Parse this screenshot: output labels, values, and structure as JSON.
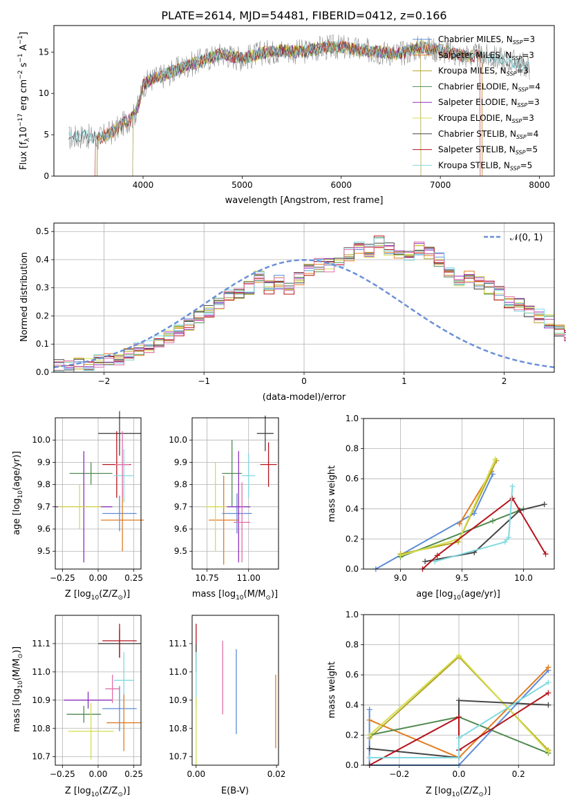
{
  "colors": {
    "chabrier_miles": "#5b8bd6",
    "salpeter_miles": "#e07b1f",
    "kroupa_miles": "#b5a323",
    "chabrier_elodie": "#4f8a4f",
    "salpeter_elodie": "#8a2fbd",
    "kroupa_elodie": "#d4de4c",
    "chabrier_stelib": "#444444",
    "salpeter_stelib": "#b5121b",
    "kroupa_stelib": "#7fd9e0",
    "extra_pink": "#e06fa9",
    "normal_curve": "#6a8fd8",
    "grid": "#b0b0b0"
  },
  "spectrum": {
    "title": "PLATE=2614, MJD=54481, FIBERID=0412, z=0.166",
    "xlabel": "wavelength [Angstrom, rest frame]",
    "ylabel_pre": "Flux [f",
    "ylabel_sub": "λ",
    "ylabel_mid": "10",
    "ylabel_sup1": "−17",
    "ylabel_post": " erg cm",
    "ylabel_sup2": "−2",
    "ylabel_s": " s",
    "ylabel_sup3": "−1",
    "ylabel_end": " A",
    "ylabel_sup4": "−1",
    "ylabel_close": "]",
    "legend": [
      {
        "label": "Chabrier MILES, N",
        "sub": "SSP",
        "tail": "=3",
        "color_key": "chabrier_miles"
      },
      {
        "label": "Salpeter MILES, N",
        "sub": "SSP",
        "tail": "=3",
        "color_key": "salpeter_miles"
      },
      {
        "label": "Kroupa MILES, N",
        "sub": "SSP",
        "tail": "=3",
        "color_key": "kroupa_miles"
      },
      {
        "label": "Chabrier ELODIE, N",
        "sub": "SSP",
        "tail": "=4",
        "color_key": "chabrier_elodie"
      },
      {
        "label": "Salpeter ELODIE, N",
        "sub": "SSP",
        "tail": "=3",
        "color_key": "salpeter_elodie"
      },
      {
        "label": "Kroupa ELODIE, N",
        "sub": "SSP",
        "tail": "=3",
        "color_key": "kroupa_elodie"
      },
      {
        "label": "Chabrier STELIB, N",
        "sub": "SSP",
        "tail": "=4",
        "color_key": "chabrier_stelib"
      },
      {
        "label": "Salpeter STELIB, N",
        "sub": "SSP",
        "tail": "=5",
        "color_key": "salpeter_stelib"
      },
      {
        "label": "Kroupa STELIB, N",
        "sub": "SSP",
        "tail": "=5",
        "color_key": "kroupa_stelib"
      }
    ]
  },
  "residuals": {
    "xlabel": "(data-model)/error",
    "ylabel": "Normed distribution",
    "legend_label": "𝒩(0, 1)"
  },
  "age_z": {
    "ylabel_pre": "age  [log",
    "ylabel_sub": "10",
    "ylabel_post": "(age/yr)]",
    "xlabel_pre": "Z [log",
    "xlabel_sub": "10",
    "xlabel_post": "(Z/Z",
    "xlabel_sub2": "⊙",
    "xlabel_close": ")]"
  },
  "age_mass": {
    "xlabel_pre": "mass [log",
    "xlabel_sub": "10",
    "xlabel_post": "(M/M",
    "xlabel_sub2": "⊙",
    "xlabel_close": ")]"
  },
  "mw_age": {
    "ylabel": "mass weight",
    "xlabel_pre": "age  [log",
    "xlabel_sub": "10",
    "xlabel_post": "(age/yr)]"
  },
  "mass_z": {
    "ylabel_pre": "mass [log",
    "ylabel_sub": "10",
    "ylabel_post": "(M/M",
    "ylabel_sub2": "⊙",
    "ylabel_close": ")]",
    "xlabel_pre": "Z [log",
    "xlabel_sub": "10",
    "xlabel_post": "(Z/Z",
    "xlabel_sub2": "⊙",
    "xlabel_close": ")]"
  },
  "mass_ebv": {
    "xlabel": "E(B-V)"
  },
  "mw_z": {
    "ylabel": "mass weight",
    "xlabel_pre": "Z [log",
    "xlabel_sub": "10",
    "xlabel_post": "(Z/Z",
    "xlabel_sub2": "⊙",
    "xlabel_close": ")]"
  },
  "chart_data": [
    {
      "type": "line",
      "title": "PLATE=2614, MJD=54481, FIBERID=0412, z=0.166",
      "xlabel": "wavelength [Angstrom, rest frame]",
      "xlim": [
        3100,
        8150
      ],
      "ylim": [
        0,
        18.2
      ],
      "xticks": [
        4000,
        5000,
        6000,
        7000,
        8000
      ],
      "yticks": [
        0,
        5,
        10,
        15
      ],
      "grid": false,
      "legend_position": "right",
      "continuum": [
        [
          3250,
          4.6
        ],
        [
          3400,
          4.9
        ],
        [
          3550,
          4.5
        ],
        [
          3700,
          5.4
        ],
        [
          3800,
          6.3
        ],
        [
          3900,
          7.2
        ],
        [
          3950,
          8.4
        ],
        [
          4000,
          11.0
        ],
        [
          4100,
          11.8
        ],
        [
          4200,
          12.1
        ],
        [
          4400,
          13.2
        ],
        [
          4600,
          14.0
        ],
        [
          4800,
          14.8
        ],
        [
          5000,
          14.2
        ],
        [
          5200,
          14.9
        ],
        [
          5400,
          15.2
        ],
        [
          5600,
          15.0
        ],
        [
          5800,
          15.5
        ],
        [
          6000,
          15.6
        ],
        [
          6200,
          15.2
        ],
        [
          6400,
          15.0
        ],
        [
          6600,
          14.8
        ],
        [
          6800,
          15.6
        ],
        [
          7000,
          15.2
        ],
        [
          7200,
          14.6
        ],
        [
          7400,
          14.5
        ],
        [
          7600,
          14.2
        ],
        [
          7800,
          13.6
        ],
        [
          7900,
          13.2
        ]
      ],
      "series": [
        {
          "color_key": "chabrier_miles",
          "xmin": 3540,
          "xmax": 7420
        },
        {
          "color_key": "salpeter_miles",
          "xmin": 3540,
          "xmax": 7420
        },
        {
          "color_key": "kroupa_miles",
          "xmin": 3540,
          "xmax": 7420
        },
        {
          "color_key": "chabrier_elodie",
          "xmin": 3900,
          "xmax": 6800
        },
        {
          "color_key": "salpeter_elodie",
          "xmin": 3900,
          "xmax": 6800
        },
        {
          "color_key": "kroupa_elodie",
          "xmin": 3900,
          "xmax": 6800
        },
        {
          "color_key": "chabrier_stelib",
          "xmin": 3250,
          "xmax": 7900
        },
        {
          "color_key": "salpeter_stelib",
          "xmin": 3520,
          "xmax": 7400
        },
        {
          "color_key": "kroupa_stelib",
          "xmin": 3250,
          "xmax": 7900
        }
      ]
    },
    {
      "type": "histogram",
      "xlabel": "(data-model)/error",
      "ylabel": "Normed distribution",
      "xlim": [
        -2.5,
        2.5
      ],
      "ylim": [
        0,
        0.53
      ],
      "xticks": [
        -2,
        -1,
        0,
        1,
        2
      ],
      "yticks": [
        0.0,
        0.1,
        0.2,
        0.3,
        0.4,
        0.5
      ],
      "grid": true,
      "legend_position": "top-right",
      "bin_width": 0.1,
      "bins_start": -2.5,
      "base_values": [
        0.02,
        0.02,
        0.03,
        0.03,
        0.04,
        0.05,
        0.05,
        0.06,
        0.08,
        0.09,
        0.11,
        0.13,
        0.15,
        0.17,
        0.2,
        0.22,
        0.24,
        0.27,
        0.28,
        0.3,
        0.34,
        0.3,
        0.32,
        0.3,
        0.33,
        0.36,
        0.38,
        0.38,
        0.4,
        0.42,
        0.44,
        0.43,
        0.46,
        0.44,
        0.42,
        0.42,
        0.44,
        0.42,
        0.4,
        0.36,
        0.33,
        0.34,
        0.32,
        0.3,
        0.28,
        0.25,
        0.24,
        0.22,
        0.2,
        0.18,
        0.15,
        0.13,
        0.12,
        0.1,
        0.08,
        0.07,
        0.06,
        0.05,
        0.04,
        0.04,
        0.03,
        0.03,
        0.03,
        0.02,
        0.02
      ],
      "series": [
        {
          "color_key": "chabrier_miles"
        },
        {
          "color_key": "salpeter_miles"
        },
        {
          "color_key": "kroupa_miles"
        },
        {
          "color_key": "chabrier_elodie"
        },
        {
          "color_key": "salpeter_elodie"
        },
        {
          "color_key": "kroupa_elodie"
        },
        {
          "color_key": "chabrier_stelib"
        },
        {
          "color_key": "salpeter_stelib"
        },
        {
          "color_key": "kroupa_stelib"
        },
        {
          "color_key": "extra_pink"
        }
      ],
      "normal": {
        "mean": 0,
        "sigma": 1,
        "style": "dashed",
        "color_key": "normal_curve"
      }
    },
    {
      "type": "errorbar",
      "ylabel": "age [log10(age/yr)]",
      "xlabel": "Z [log10(Z/Z⊙)]",
      "xlim": [
        -0.3,
        0.3
      ],
      "ylim": [
        9.42,
        10.1
      ],
      "xticks": [
        -0.25,
        0.0,
        0.25
      ],
      "yticks": [
        9.5,
        9.6,
        9.7,
        9.8,
        9.9,
        10.0
      ],
      "grid": true,
      "points": [
        {
          "color_key": "chabrier_stelib",
          "x": 0.15,
          "y": 10.03,
          "xerr": 0.15,
          "yerr": 0.1
        },
        {
          "color_key": "salpeter_stelib",
          "x": 0.13,
          "y": 9.89,
          "xerr": 0.1,
          "yerr": 0.15
        },
        {
          "color_key": "kroupa_stelib",
          "x": 0.18,
          "y": 9.84,
          "xerr": 0.07,
          "yerr": 0.12
        },
        {
          "color_key": "chabrier_elodie",
          "x": -0.05,
          "y": 9.85,
          "xerr": 0.15,
          "yerr": 0.05
        },
        {
          "color_key": "chabrier_miles",
          "x": 0.15,
          "y": 9.67,
          "xerr": 0.12,
          "yerr": 0.08
        },
        {
          "color_key": "salpeter_miles",
          "x": 0.17,
          "y": 9.64,
          "xerr": 0.15,
          "yerr": 0.14
        },
        {
          "color_key": "salpeter_elodie",
          "x": -0.1,
          "y": 9.7,
          "xerr": 0.2,
          "yerr": 0.25
        },
        {
          "color_key": "kroupa_elodie",
          "x": -0.13,
          "y": 9.7,
          "xerr": 0.15,
          "yerr": 0.1
        },
        {
          "color_key": "extra_pink",
          "x": 0.17,
          "y": 9.89,
          "xerr": 0.05,
          "yerr": 0.15
        }
      ]
    },
    {
      "type": "errorbar",
      "ylabel": "age [log10(age/yr)]",
      "xlabel": "mass [log10(M/M⊙)]",
      "xlim": [
        10.66,
        11.18
      ],
      "ylim": [
        9.42,
        10.1
      ],
      "xticks": [
        10.75,
        11.0
      ],
      "yticks": [
        9.5,
        9.6,
        9.7,
        9.8,
        9.9,
        10.0
      ],
      "grid": true,
      "points": [
        {
          "color_key": "chabrier_stelib",
          "x": 11.1,
          "y": 10.03,
          "xerr": 0.05,
          "yerr": 0.08
        },
        {
          "color_key": "salpeter_stelib",
          "x": 11.12,
          "y": 9.89,
          "xerr": 0.05,
          "yerr": 0.1
        },
        {
          "color_key": "kroupa_stelib",
          "x": 11.0,
          "y": 9.84,
          "xerr": 0.04,
          "yerr": 0.1
        },
        {
          "color_key": "chabrier_elodie",
          "x": 10.9,
          "y": 9.85,
          "xerr": 0.06,
          "yerr": 0.15
        },
        {
          "color_key": "chabrier_miles",
          "x": 10.93,
          "y": 9.67,
          "xerr": 0.09,
          "yerr": 0.09
        },
        {
          "color_key": "salpeter_miles",
          "x": 10.85,
          "y": 9.64,
          "xerr": 0.09,
          "yerr": 0.2
        },
        {
          "color_key": "salpeter_elodie",
          "x": 10.94,
          "y": 9.7,
          "xerr": 0.07,
          "yerr": 0.25
        },
        {
          "color_key": "kroupa_elodie",
          "x": 10.8,
          "y": 9.7,
          "xerr": 0.06,
          "yerr": 0.2
        },
        {
          "color_key": "extra_pink",
          "x": 10.96,
          "y": 9.63,
          "xerr": 0.05,
          "yerr": 0.18
        }
      ]
    },
    {
      "type": "line",
      "ylabel": "mass weight",
      "xlabel": "age [log10(age/yr)]",
      "xlim": [
        8.7,
        10.25
      ],
      "ylim": [
        0,
        1.0
      ],
      "xticks": [
        9.0,
        9.5,
        10.0
      ],
      "yticks": [
        0.0,
        0.2,
        0.4,
        0.6,
        0.8,
        1.0
      ],
      "grid": true,
      "series": [
        {
          "color_key": "chabrier_miles",
          "x": [
            8.8,
            9.6,
            9.75
          ],
          "y": [
            0.0,
            0.37,
            0.63
          ]
        },
        {
          "color_key": "salpeter_miles",
          "x": [
            9.48,
            9.74
          ],
          "y": [
            0.3,
            0.65
          ]
        },
        {
          "color_key": "kroupa_miles",
          "x": [
            9.0,
            9.47,
            9.78
          ],
          "y": [
            0.1,
            0.18,
            0.72
          ]
        },
        {
          "color_key": "chabrier_elodie",
          "x": [
            9.0,
            9.75,
            10.0
          ],
          "y": [
            0.08,
            0.32,
            0.4
          ]
        },
        {
          "color_key": "kroupa_elodie",
          "x": [
            9.0,
            9.48,
            9.77
          ],
          "y": [
            0.09,
            0.2,
            0.73
          ]
        },
        {
          "color_key": "chabrier_stelib",
          "x": [
            9.2,
            9.6,
            9.97,
            10.17
          ],
          "y": [
            0.05,
            0.11,
            0.39,
            0.43
          ]
        },
        {
          "color_key": "salpeter_stelib",
          "x": [
            9.18,
            9.3,
            9.91,
            10.18
          ],
          "y": [
            0.0,
            0.09,
            0.47,
            0.1
          ]
        },
        {
          "color_key": "kroupa_stelib",
          "x": [
            9.28,
            9.85,
            9.88,
            9.91
          ],
          "y": [
            0.05,
            0.18,
            0.21,
            0.55
          ]
        }
      ]
    },
    {
      "type": "errorbar",
      "ylabel": "mass [log10(M/M⊙)]",
      "xlabel": "Z [log10(Z/Z⊙)]",
      "xlim": [
        -0.3,
        0.3
      ],
      "ylim": [
        10.67,
        11.2
      ],
      "xticks": [
        -0.25,
        0.0,
        0.25
      ],
      "yticks": [
        10.7,
        10.8,
        10.9,
        11.0,
        11.1
      ],
      "grid": true,
      "points": [
        {
          "color_key": "chabrier_stelib",
          "x": 0.15,
          "y": 11.1,
          "xerr": 0.15,
          "yerr": 0.05
        },
        {
          "color_key": "salpeter_stelib",
          "x": 0.15,
          "y": 11.11,
          "xerr": 0.12,
          "yerr": 0.06
        },
        {
          "color_key": "kroupa_stelib",
          "x": 0.18,
          "y": 10.97,
          "xerr": 0.07,
          "yerr": 0.1
        },
        {
          "color_key": "chabrier_elodie",
          "x": -0.1,
          "y": 10.85,
          "xerr": 0.12,
          "yerr": 0.03
        },
        {
          "color_key": "chabrier_miles",
          "x": 0.15,
          "y": 10.87,
          "xerr": 0.12,
          "yerr": 0.08
        },
        {
          "color_key": "salpeter_miles",
          "x": 0.18,
          "y": 10.82,
          "xerr": 0.12,
          "yerr": 0.1
        },
        {
          "color_key": "salpeter_elodie",
          "x": -0.07,
          "y": 10.9,
          "xerr": 0.17,
          "yerr": 0.03
        },
        {
          "color_key": "kroupa_elodie",
          "x": -0.05,
          "y": 10.79,
          "xerr": 0.16,
          "yerr": 0.1
        },
        {
          "color_key": "extra_pink",
          "x": 0.1,
          "y": 10.94,
          "xerr": 0.05,
          "yerr": 0.05
        }
      ]
    },
    {
      "type": "errorbar",
      "xlabel": "E(B-V)",
      "xlim": [
        -0.001,
        0.0205
      ],
      "ylim": [
        10.67,
        11.2
      ],
      "xticks": [
        0.0,
        0.02
      ],
      "yticks": [
        10.7,
        10.8,
        10.9,
        11.0,
        11.1
      ],
      "grid": false,
      "points": [
        {
          "color_key": "salpeter_stelib",
          "x": 0.0,
          "y": 11.1,
          "xerr": 0,
          "yerr": 0.07
        },
        {
          "color_key": "chabrier_stelib",
          "x": 0.0,
          "y": 11.05,
          "xerr": 0,
          "yerr": 0.05
        },
        {
          "color_key": "kroupa_stelib",
          "x": 0.0,
          "y": 10.97,
          "xerr": 0,
          "yerr": 0.1
        },
        {
          "color_key": "kroupa_elodie",
          "x": 0.0,
          "y": 10.79,
          "xerr": 0,
          "yerr": 0.12
        },
        {
          "color_key": "extra_pink",
          "x": 0.0066,
          "y": 10.98,
          "xerr": 0,
          "yerr": 0.13
        },
        {
          "color_key": "chabrier_miles",
          "x": 0.01,
          "y": 10.93,
          "xerr": 0,
          "yerr": 0.15
        },
        {
          "color_key": "salpeter_miles",
          "x": 0.0198,
          "y": 10.86,
          "xerr": 0,
          "yerr": 0.13
        }
      ]
    },
    {
      "type": "line",
      "ylabel": "mass weight",
      "xlabel": "Z [log10(Z/Z⊙)]",
      "xlim": [
        -0.32,
        0.32
      ],
      "ylim": [
        0,
        1.0
      ],
      "xticks": [
        -0.2,
        0.0,
        0.2
      ],
      "yticks": [
        0.0,
        0.2,
        0.4,
        0.6,
        0.8,
        1.0
      ],
      "grid": true,
      "series": [
        {
          "color_key": "chabrier_miles",
          "x": [
            -0.3,
            -0.3,
            0.0,
            0.3
          ],
          "y": [
            0.37,
            0.0,
            0.0,
            0.63
          ]
        },
        {
          "color_key": "salpeter_miles",
          "x": [
            -0.3,
            0.0,
            0.3
          ],
          "y": [
            0.3,
            0.05,
            0.65
          ]
        },
        {
          "color_key": "kroupa_miles",
          "x": [
            -0.3,
            0.0,
            0.3
          ],
          "y": [
            0.18,
            0.72,
            0.1
          ]
        },
        {
          "color_key": "chabrier_elodie",
          "x": [
            -0.3,
            0.0,
            0.3
          ],
          "y": [
            0.2,
            0.32,
            0.08
          ]
        },
        {
          "color_key": "kroupa_elodie",
          "x": [
            -0.3,
            0.0,
            0.3
          ],
          "y": [
            0.2,
            0.73,
            0.09
          ]
        },
        {
          "color_key": "chabrier_stelib",
          "x": [
            -0.3,
            0.0,
            0.0,
            0.3
          ],
          "y": [
            0.11,
            0.05,
            0.43,
            0.4
          ]
        },
        {
          "color_key": "salpeter_stelib",
          "x": [
            -0.3,
            0.0,
            0.0,
            0.3
          ],
          "y": [
            0.0,
            0.32,
            0.1,
            0.48
          ]
        },
        {
          "color_key": "kroupa_stelib",
          "x": [
            -0.3,
            0.0,
            0.0,
            0.3
          ],
          "y": [
            0.05,
            0.05,
            0.18,
            0.55
          ]
        }
      ]
    }
  ]
}
